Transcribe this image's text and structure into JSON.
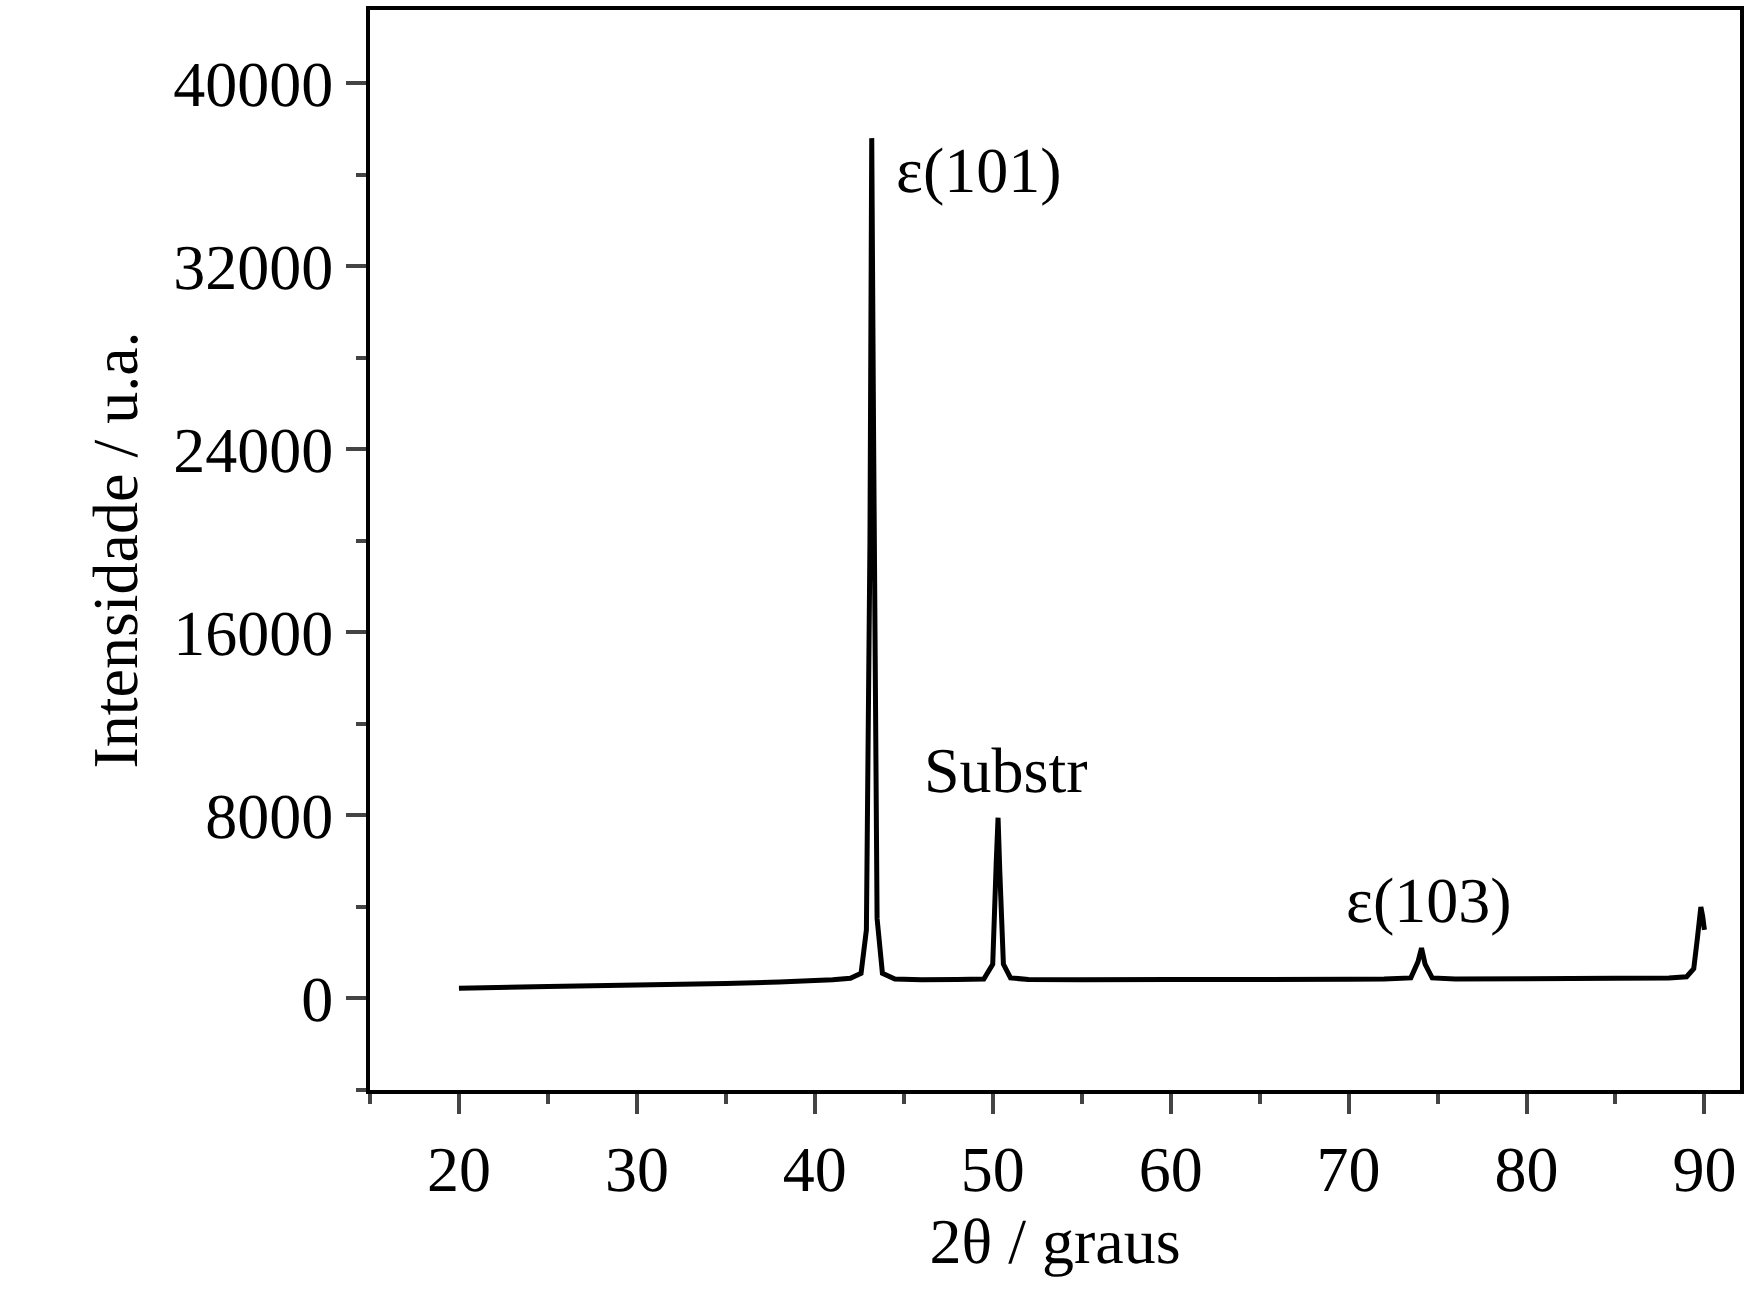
{
  "chart_data": {
    "type": "line",
    "xlabel": "2θ / graus",
    "ylabel": "Intensidade / u.a.",
    "series": [
      {
        "color": "#000000",
        "x": [
          20,
          25,
          30,
          35,
          38,
          40,
          41,
          42,
          42.6,
          42.9,
          43.1,
          43.2,
          43.3,
          43.5,
          43.8,
          44.5,
          46,
          48,
          49.5,
          50,
          50.2,
          50.3,
          50.4,
          50.6,
          51,
          52,
          55,
          60,
          65,
          70,
          72,
          73.5,
          73.9,
          74.1,
          74.3,
          74.7,
          76,
          80,
          85,
          88,
          89,
          89.4,
          89.6,
          89.8,
          89.9,
          90
        ],
        "values": [
          450,
          520,
          590,
          650,
          720,
          780,
          820,
          880,
          1100,
          3000,
          20000,
          37600,
          25000,
          3500,
          1100,
          850,
          820,
          830,
          850,
          1500,
          6000,
          7900,
          5500,
          1500,
          900,
          830,
          820,
          830,
          830,
          840,
          850,
          900,
          1600,
          2200,
          1500,
          900,
          850,
          860,
          880,
          900,
          950,
          1300,
          2600,
          4000,
          3600,
          3000
        ]
      }
    ],
    "annotations": [
      {
        "text": "ε(101)",
        "x": 43.2,
        "y": 37600
      },
      {
        "text": "Substr",
        "x": 50.3,
        "y": 7900
      },
      {
        "text": "ε(103)",
        "x": 74.1,
        "y": 2200
      }
    ],
    "xlim": [
      15,
      92
    ],
    "xticks": [
      20,
      30,
      40,
      50,
      60,
      70,
      80,
      90
    ],
    "ylim": [
      -4000,
      43200
    ],
    "yticks": [
      0,
      8000,
      16000,
      24000,
      32000,
      40000
    ],
    "marker": "none",
    "line_style": "solid"
  }
}
